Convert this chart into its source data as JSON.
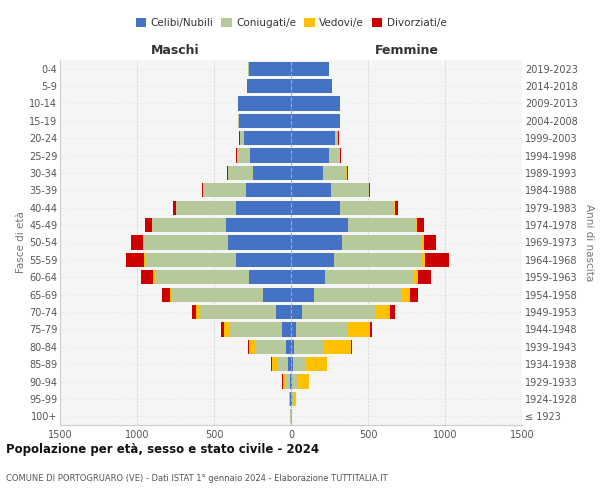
{
  "age_groups": [
    "100+",
    "95-99",
    "90-94",
    "85-89",
    "80-84",
    "75-79",
    "70-74",
    "65-69",
    "60-64",
    "55-59",
    "50-54",
    "45-49",
    "40-44",
    "35-39",
    "30-34",
    "25-29",
    "20-24",
    "15-19",
    "10-14",
    "5-9",
    "0-4"
  ],
  "birth_years": [
    "≤ 1923",
    "1924-1928",
    "1929-1933",
    "1934-1938",
    "1939-1943",
    "1944-1948",
    "1949-1953",
    "1954-1958",
    "1959-1963",
    "1964-1968",
    "1969-1973",
    "1974-1978",
    "1979-1983",
    "1984-1988",
    "1989-1993",
    "1994-1998",
    "1999-2003",
    "2004-2008",
    "2009-2013",
    "2014-2018",
    "2019-2023"
  ],
  "male_celibi": [
    2,
    4,
    8,
    18,
    35,
    60,
    100,
    180,
    270,
    360,
    410,
    420,
    360,
    295,
    245,
    265,
    305,
    335,
    345,
    285,
    275
  ],
  "male_coniugati": [
    2,
    5,
    28,
    75,
    190,
    340,
    490,
    590,
    615,
    590,
    545,
    480,
    385,
    275,
    165,
    85,
    28,
    7,
    2,
    1,
    1
  ],
  "male_vedovi": [
    1,
    4,
    18,
    30,
    45,
    38,
    28,
    18,
    9,
    7,
    4,
    3,
    2,
    1,
    1,
    1,
    1,
    0,
    0,
    0,
    0
  ],
  "male_divorziati": [
    0,
    0,
    2,
    5,
    9,
    18,
    28,
    48,
    78,
    115,
    78,
    48,
    18,
    9,
    5,
    3,
    2,
    0,
    0,
    0,
    0
  ],
  "female_nubili": [
    2,
    4,
    8,
    12,
    18,
    35,
    70,
    150,
    220,
    280,
    330,
    370,
    320,
    262,
    205,
    245,
    285,
    315,
    315,
    265,
    245
  ],
  "female_coniugate": [
    2,
    7,
    32,
    85,
    195,
    330,
    480,
    570,
    570,
    570,
    520,
    440,
    350,
    242,
    155,
    75,
    22,
    4,
    1,
    1,
    1
  ],
  "female_vedove": [
    3,
    22,
    75,
    135,
    175,
    145,
    95,
    55,
    32,
    18,
    13,
    7,
    4,
    3,
    2,
    1,
    1,
    0,
    0,
    0,
    0
  ],
  "female_divorziate": [
    0,
    0,
    3,
    5,
    9,
    18,
    28,
    48,
    88,
    155,
    78,
    48,
    18,
    9,
    5,
    3,
    2,
    0,
    0,
    0,
    0
  ],
  "color_celibi": "#4472c4",
  "color_coniugati": "#b5c99a",
  "color_vedovi": "#ffc000",
  "color_divorziati": "#cc0000",
  "xlim": 1500,
  "xtick_vals": [
    -1500,
    -1000,
    -500,
    0,
    500,
    1000,
    1500
  ],
  "title": "Popolazione per età, sesso e stato civile - 2024",
  "subtitle": "COMUNE DI PORTOGRUARO (VE) - Dati ISTAT 1° gennaio 2024 - Elaborazione TUTTITALIA.IT",
  "legend_labels": [
    "Celibi/Nubili",
    "Coniugati/e",
    "Vedovi/e",
    "Divorziati/e"
  ],
  "label_maschi": "Maschi",
  "label_femmine": "Femmine",
  "label_fasce": "Fasce di età",
  "label_anni": "Anni di nascita",
  "bg_color": "#ffffff",
  "plot_bg": "#f5f5f5"
}
